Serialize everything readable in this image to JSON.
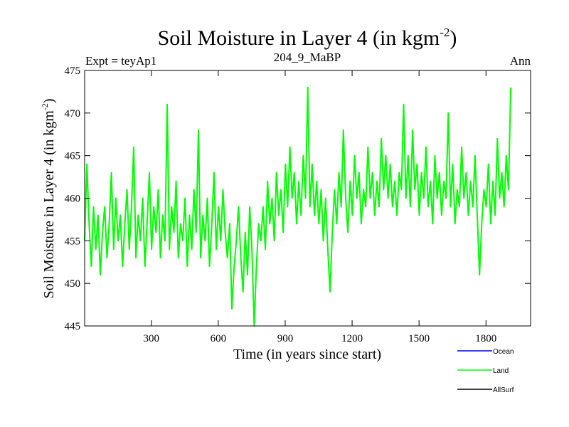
{
  "chart_data": {
    "type": "line",
    "title": "Soil Moisture in Layer 4 (in kgm",
    "title_sup": "-2",
    "title_close": ")",
    "left_label": "Expt = teyAp1",
    "center_label": "204_9_MaBP",
    "right_label": "Ann",
    "xlabel": "Time (in years since start)",
    "ylabel": "Soil Moisture in Layer 4 (in kgm",
    "ylabel_sup": "-2",
    "ylabel_close": ")",
    "xlim": [
      1,
      2000
    ],
    "ylim": [
      445,
      475
    ],
    "x_ticks": [
      300,
      600,
      900,
      1200,
      1500,
      1800
    ],
    "x_tick_labels": [
      "300",
      "600",
      "900",
      "1200",
      "1500",
      "1800"
    ],
    "y_ticks": [
      445,
      450,
      455,
      460,
      465,
      470,
      475
    ],
    "y_tick_labels": [
      "445",
      "450",
      "455",
      "460",
      "465",
      "470",
      "475"
    ],
    "grid": false,
    "legend_position": "bottom-right",
    "series": [
      {
        "name": "Ocean",
        "color": "#0000ff",
        "values": []
      },
      {
        "name": "Land",
        "color": "#00ff00",
        "x_start": 1,
        "x_step": 10,
        "values": [
          455,
          464,
          457,
          452,
          459,
          454,
          458,
          451,
          456,
          459,
          453,
          457,
          463,
          454,
          460,
          455,
          458,
          452,
          457,
          461,
          454,
          459,
          466,
          453,
          458,
          455,
          460,
          452,
          457,
          463,
          454,
          459,
          456,
          461,
          453,
          458,
          455,
          471,
          454,
          459,
          456,
          462,
          453,
          457,
          455,
          460,
          452,
          458,
          454,
          461,
          456,
          468,
          453,
          458,
          455,
          460,
          452,
          457,
          463,
          454,
          459,
          455,
          461,
          456,
          453,
          457,
          447,
          452,
          455,
          459,
          453,
          449,
          456,
          451,
          459,
          454,
          445,
          452,
          457,
          455,
          459,
          454,
          462,
          457,
          460,
          455,
          463,
          458,
          461,
          456,
          464,
          459,
          466,
          460,
          463,
          457,
          462,
          458,
          465,
          460,
          473,
          459,
          464,
          458,
          462,
          457,
          461,
          455,
          460,
          454,
          449,
          456,
          461,
          457,
          463,
          459,
          468,
          460,
          456,
          462,
          458,
          465,
          460,
          463,
          457,
          461,
          459,
          466,
          460,
          463,
          458,
          462,
          459,
          467,
          461,
          465,
          460,
          464,
          459,
          462,
          458,
          463,
          461,
          471,
          460,
          465,
          459,
          468,
          461,
          464,
          458,
          463,
          460,
          466,
          459,
          462,
          457,
          465,
          460,
          463,
          458,
          462,
          460,
          470,
          459,
          464,
          457,
          461,
          459,
          466,
          460,
          463,
          458,
          462,
          459,
          465,
          458,
          451,
          457,
          461,
          459,
          464,
          457,
          462,
          458,
          467,
          460,
          463,
          459,
          465,
          461,
          473
        ]
      },
      {
        "name": "AllSurf",
        "color": "#000000",
        "values": []
      }
    ]
  }
}
